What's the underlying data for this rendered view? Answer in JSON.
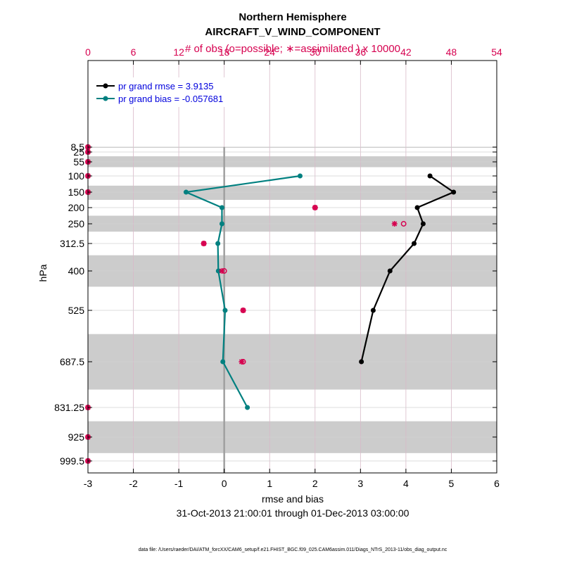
{
  "colors": {
    "obs": "#d6004f",
    "rmse": "#000000",
    "bias": "#008080",
    "legend_text": "#0000dd",
    "band": "#cccccc",
    "grid_vertical": "#d8b9c8",
    "grid_horizontal": "#d0d0d0",
    "zero_line": "#a0a0a0"
  },
  "chart_data": {
    "type": "line",
    "title": "Northern Hemisphere",
    "subtitle": "AIRCRAFT_V_WIND_COMPONENT",
    "top_axis_label": "# of obs (o=possible; ∗=assimilated ) x 10000",
    "xlabel": "rmse and bias",
    "ylabel": "hPa",
    "time_range": "31-Oct-2013 21:00:01 through 01-Dec-2013 03:00:00",
    "footer": "data file: /Users/raeder/DAI/ATM_forcXX/CAM6_setup/f.e21.FHIST_BGC.f09_025.CAM6assim.011/Diags_NTrS_2013-11/obs_diag_output.nc",
    "xlim": [
      -3,
      6
    ],
    "x_ticks": [
      "-3",
      "-2",
      "-1",
      "0",
      "1",
      "2",
      "3",
      "4",
      "5",
      "6"
    ],
    "top_xlim": [
      0,
      54
    ],
    "top_ticks": [
      "0",
      "6",
      "12",
      "18",
      "24",
      "30",
      "36",
      "42",
      "48",
      "54"
    ],
    "y_levels": [
      8.5,
      25,
      55,
      100,
      150,
      200,
      250,
      312.5,
      400,
      525,
      687.5,
      831.25,
      925,
      999.5
    ],
    "y_tick_labels": [
      "8.5",
      "25",
      "55",
      "100",
      "150",
      "200",
      "250",
      "312.5",
      "400",
      "525",
      "687.5",
      "831.25",
      "925",
      "999.5"
    ],
    "y_reversed": true,
    "grid": true,
    "legend_position": "top-left",
    "series": [
      {
        "name": "pr grand rmse = 3.9135",
        "color": "#000000",
        "points": [
          {
            "level": 100,
            "value": 4.53
          },
          {
            "level": 150,
            "value": 5.05
          },
          {
            "level": 200,
            "value": 4.25
          },
          {
            "level": 250,
            "value": 4.38
          },
          {
            "level": 312.5,
            "value": 4.18
          },
          {
            "level": 400,
            "value": 3.65
          },
          {
            "level": 525,
            "value": 3.28
          },
          {
            "level": 687.5,
            "value": 3.02
          }
        ]
      },
      {
        "name": "pr grand bias = -0.057681",
        "color": "#008080",
        "points": [
          {
            "level": 100,
            "value": 1.67
          },
          {
            "level": 150,
            "value": -0.84
          },
          {
            "level": 200,
            "value": -0.05
          },
          {
            "level": 250,
            "value": -0.05
          },
          {
            "level": 312.5,
            "value": -0.14
          },
          {
            "level": 400,
            "value": -0.13
          },
          {
            "level": 525,
            "value": 0.02
          },
          {
            "level": 687.5,
            "value": -0.03
          },
          {
            "level": 831.25,
            "value": 0.51
          }
        ]
      }
    ],
    "obs_counts_x10000": [
      {
        "level": 8.5,
        "possible": 0.0,
        "assimilated": 0.0
      },
      {
        "level": 25,
        "possible": 0.0,
        "assimilated": 0.0
      },
      {
        "level": 55,
        "possible": 0.0,
        "assimilated": 0.0
      },
      {
        "level": 100,
        "possible": 0.0,
        "assimilated": 0.0
      },
      {
        "level": 150,
        "possible": 0.0,
        "assimilated": 0.0
      },
      {
        "level": 200,
        "possible": 30.0,
        "assimilated": 30.0
      },
      {
        "level": 250,
        "possible": 41.7,
        "assimilated": 40.5
      },
      {
        "level": 312.5,
        "possible": 15.3,
        "assimilated": 15.3
      },
      {
        "level": 400,
        "possible": 18.0,
        "assimilated": 17.7
      },
      {
        "level": 525,
        "possible": 20.5,
        "assimilated": 20.5
      },
      {
        "level": 687.5,
        "possible": 20.5,
        "assimilated": 20.3
      },
      {
        "level": 831.25,
        "possible": 0.0,
        "assimilated": 0.0
      },
      {
        "level": 925,
        "possible": 0.0,
        "assimilated": 0.0
      },
      {
        "level": 999.5,
        "possible": 0.0,
        "assimilated": 0.0
      }
    ],
    "shaded_bands_hPa": [
      [
        8,
        11
      ],
      [
        38,
        72
      ],
      [
        130,
        175
      ],
      [
        225,
        275
      ],
      [
        350,
        450
      ],
      [
        600,
        775
      ],
      [
        875,
        975
      ]
    ]
  }
}
